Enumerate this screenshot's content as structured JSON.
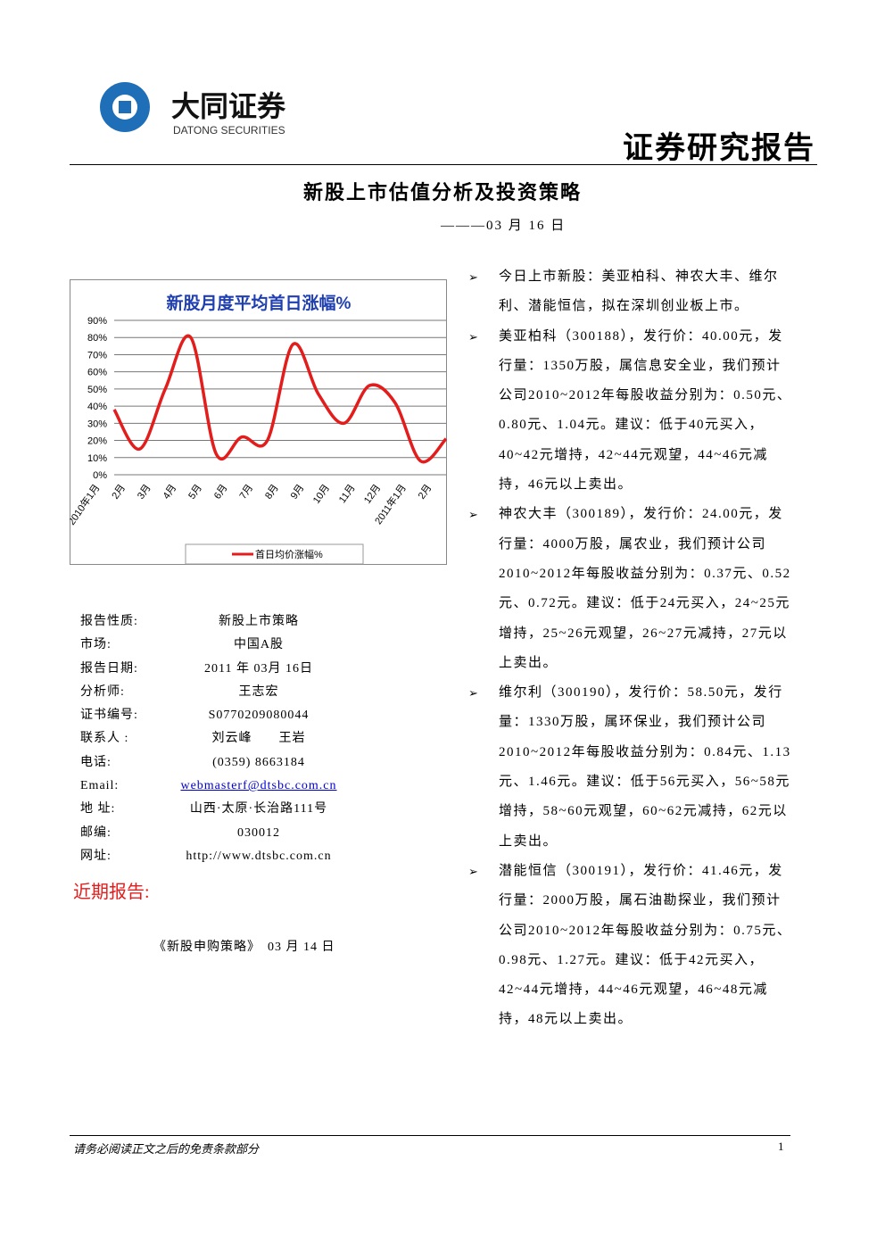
{
  "header": {
    "logo_name": "大同证券",
    "logo_sub": "DATONG SECURITIES",
    "report_type": "证券研究报告"
  },
  "title": "新股上市估值分析及投资策略",
  "date": "———03 月 16 日",
  "chart_data": {
    "type": "line",
    "title": "新股月度平均首日涨幅%",
    "categories": [
      "2010年1月",
      "2月",
      "3月",
      "4月",
      "5月",
      "6月",
      "7月",
      "8月",
      "9月",
      "10月",
      "11月",
      "12月",
      "2011年1月",
      "2月"
    ],
    "series": [
      {
        "name": "首日均价涨幅%",
        "color": "#e31c1c",
        "values": [
          38,
          15,
          50,
          80,
          12,
          22,
          20,
          76,
          47,
          30,
          52,
          42,
          8,
          21
        ]
      }
    ],
    "ylim": [
      0,
      90
    ],
    "yticks": [
      {
        "value": 0,
        "label": "0%"
      },
      {
        "value": 10,
        "label": "10%"
      },
      {
        "value": 20,
        "label": "20%"
      },
      {
        "value": 30,
        "label": "30%"
      },
      {
        "value": 40,
        "label": "40%"
      },
      {
        "value": 50,
        "label": "50%"
      },
      {
        "value": 60,
        "label": "60%"
      },
      {
        "value": 70,
        "label": "70%"
      },
      {
        "value": 80,
        "label": "80%"
      },
      {
        "value": 90,
        "label": "90%"
      }
    ],
    "grid": true,
    "legend": "bottom"
  },
  "info": [
    {
      "label": "报告性质:",
      "value": "新股上市策略"
    },
    {
      "label": "市场:",
      "value": "中国A股"
    },
    {
      "label": "报告日期:",
      "value": "2011 年 03月 16日"
    },
    {
      "label": "分析师:",
      "value": "王志宏"
    },
    {
      "label": "证书编号:",
      "value": "S0770209080044"
    },
    {
      "label": "联系人 :",
      "value": "刘云峰　　王岩"
    },
    {
      "label": "电话:",
      "value": "(0359) 8663184"
    },
    {
      "label": "Email:",
      "value": "webmasterf@dtsbc.com.cn"
    },
    {
      "label": "地 址:",
      "value": "山西·太原·长治路111号"
    },
    {
      "label": "邮编:",
      "value": "030012"
    },
    {
      "label": "网址:",
      "value": "http://www.dtsbc.com.cn"
    }
  ],
  "recent": {
    "heading": "近期报告:",
    "items": [
      "《新股申购策略》　03 月 14 日"
    ]
  },
  "bullets": [
    "今日上市新股：美亚柏科、神农大丰、维尔利、潜能恒信，拟在深圳创业板上市。",
    "美亚柏科（300188），发行价：40.00元，发行量：1350万股，属信息安全业，我们预计公司2010~2012年每股收益分别为：0.50元、0.80元、1.04元。建议：低于40元买入，40~42元增持，42~44元观望，44~46元减持，46元以上卖出。",
    "神农大丰（300189），发行价：24.00元，发行量：4000万股，属农业，我们预计公司2010~2012年每股收益分别为：0.37元、0.52元、0.72元。建议：低于24元买入，24~25元增持，25~26元观望，26~27元减持，27元以上卖出。",
    "维尔利（300190），发行价：58.50元，发行量：1330万股，属环保业，我们预计公司2010~2012年每股收益分别为：0.84元、1.13元、1.46元。建议：低于56元买入，56~58元增持，58~60元观望，60~62元减持，62元以上卖出。",
    "潜能恒信（300191），发行价：41.46元，发行量：2000万股，属石油勘探业，我们预计公司2010~2012年每股收益分别为：0.75元、0.98元、1.27元。建议：低于42元买入，42~44元增持，44~46元观望，46~48元减持，48元以上卖出。"
  ],
  "footer": {
    "note": "请务必阅读正文之后的免责条款部分",
    "page": "1"
  }
}
